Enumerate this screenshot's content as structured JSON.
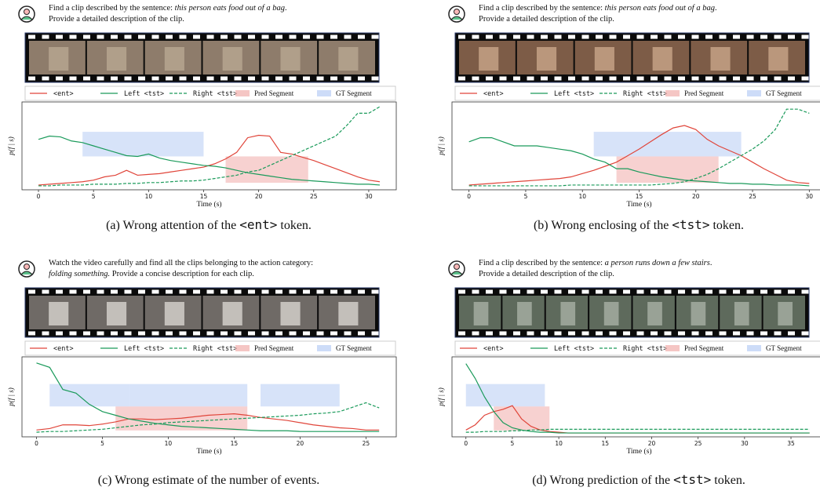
{
  "chart_data": [
    {
      "type": "line",
      "instruction": [
        [
          "Find a clip described by the sentence: ",
          {
            "text": "this person eats food out of a bag",
            "italic": true
          },
          "."
        ],
        [
          "Provide a detailed description of the clip."
        ]
      ],
      "xlabel": "Time (s)",
      "ylabel": "p(f | s)",
      "x": [
        0,
        1,
        2,
        3,
        4,
        5,
        6,
        7,
        8,
        9,
        10,
        11,
        12,
        13,
        14,
        15,
        16,
        17,
        18,
        19,
        20,
        21,
        22,
        23,
        24,
        25,
        26,
        27,
        28,
        29,
        30,
        31
      ],
      "series": [
        {
          "name": "<ent>",
          "color": "#e0453a",
          "linestyle": "solid",
          "values": [
            0.02,
            0.03,
            0.04,
            0.05,
            0.06,
            0.08,
            0.12,
            0.14,
            0.2,
            0.14,
            0.15,
            0.16,
            0.18,
            0.2,
            0.22,
            0.24,
            0.28,
            0.34,
            0.42,
            0.6,
            0.63,
            0.62,
            0.42,
            0.4,
            0.36,
            0.32,
            0.27,
            0.22,
            0.17,
            0.12,
            0.08,
            0.06
          ]
        },
        {
          "name": "Left <tst>",
          "color": "#1a9a5a",
          "linestyle": "solid",
          "values": [
            0.58,
            0.62,
            0.61,
            0.56,
            0.54,
            0.5,
            0.46,
            0.42,
            0.38,
            0.37,
            0.4,
            0.35,
            0.32,
            0.3,
            0.28,
            0.26,
            0.25,
            0.23,
            0.2,
            0.17,
            0.15,
            0.13,
            0.11,
            0.09,
            0.08,
            0.07,
            0.06,
            0.05,
            0.04,
            0.03,
            0.03,
            0.02
          ]
        },
        {
          "name": "Right <tst>",
          "color": "#1a9a5a",
          "linestyle": "dashed",
          "values": [
            0.01,
            0.01,
            0.02,
            0.02,
            0.02,
            0.03,
            0.03,
            0.03,
            0.04,
            0.04,
            0.05,
            0.05,
            0.06,
            0.07,
            0.07,
            0.08,
            0.1,
            0.12,
            0.14,
            0.18,
            0.2,
            0.26,
            0.32,
            0.38,
            0.44,
            0.5,
            0.56,
            0.62,
            0.75,
            0.9,
            0.9,
            0.98
          ]
        }
      ],
      "spans": [
        {
          "name": "Pred Segment",
          "color": "#f2b3b0",
          "intervals": [
            [
              17,
              24.5
            ]
          ]
        },
        {
          "name": "GT Segment",
          "color": "#bcd0f5",
          "intervals": [
            [
              4,
              15
            ]
          ]
        }
      ],
      "xlim": [
        -1.5,
        32.5
      ],
      "xticks": [
        0,
        5,
        10,
        15,
        20,
        25,
        30
      ],
      "ylim": [
        0,
        1
      ],
      "caption": [
        "(a) Wrong attention of the ",
        {
          "text": "<ent>",
          "mono": true
        },
        " token."
      ]
    },
    {
      "type": "line",
      "instruction": [
        [
          "Find a clip described by the sentence: ",
          {
            "text": "this person eats food out of a bag",
            "italic": true
          },
          "."
        ],
        [
          "Provide a detailed description of the clip."
        ]
      ],
      "xlabel": "Time (s)",
      "ylabel": "p(f | s)",
      "x": [
        0,
        1,
        2,
        3,
        4,
        5,
        6,
        7,
        8,
        9,
        10,
        11,
        12,
        13,
        14,
        15,
        16,
        17,
        18,
        19,
        20,
        21,
        22,
        23,
        24,
        25,
        26,
        27,
        28,
        29,
        30
      ],
      "series": [
        {
          "name": "<ent>",
          "color": "#e0453a",
          "linestyle": "solid",
          "values": [
            0.02,
            0.03,
            0.04,
            0.05,
            0.06,
            0.07,
            0.08,
            0.09,
            0.1,
            0.12,
            0.16,
            0.2,
            0.25,
            0.3,
            0.38,
            0.46,
            0.55,
            0.64,
            0.72,
            0.75,
            0.7,
            0.58,
            0.5,
            0.44,
            0.38,
            0.3,
            0.22,
            0.15,
            0.08,
            0.05,
            0.04
          ]
        },
        {
          "name": "Left <tst>",
          "color": "#1a9a5a",
          "linestyle": "solid",
          "values": [
            0.55,
            0.6,
            0.6,
            0.55,
            0.5,
            0.5,
            0.5,
            0.48,
            0.46,
            0.44,
            0.4,
            0.34,
            0.3,
            0.22,
            0.22,
            0.18,
            0.15,
            0.12,
            0.1,
            0.08,
            0.07,
            0.06,
            0.05,
            0.04,
            0.04,
            0.03,
            0.03,
            0.02,
            0.02,
            0.02,
            0.01
          ]
        },
        {
          "name": "Right <tst>",
          "color": "#1a9a5a",
          "linestyle": "dashed",
          "values": [
            0.01,
            0.01,
            0.01,
            0.01,
            0.01,
            0.01,
            0.01,
            0.01,
            0.01,
            0.02,
            0.02,
            0.02,
            0.02,
            0.02,
            0.02,
            0.02,
            0.02,
            0.03,
            0.04,
            0.06,
            0.1,
            0.15,
            0.22,
            0.3,
            0.38,
            0.46,
            0.56,
            0.7,
            0.95,
            0.95,
            0.9
          ]
        }
      ],
      "spans": [
        {
          "name": "Pred Segment",
          "color": "#f2b3b0",
          "intervals": [
            [
              13,
              22
            ]
          ]
        },
        {
          "name": "GT Segment",
          "color": "#bcd0f5",
          "intervals": [
            [
              11,
              24
            ]
          ]
        }
      ],
      "xlim": [
        -1.5,
        31.5
      ],
      "xticks": [
        0,
        5,
        10,
        15,
        20,
        25,
        30
      ],
      "ylim": [
        0,
        1
      ],
      "caption": [
        "(b) Wrong enclosing of the ",
        {
          "text": "<tst>",
          "mono": true
        },
        " token."
      ]
    },
    {
      "type": "line",
      "instruction": [
        [
          "Watch the video carefully and find all the clips belonging to the action category:"
        ],
        [
          {
            "text": "folding something.",
            "italic": true
          },
          " Provide a concise description for each clip."
        ]
      ],
      "xlabel": "Time (s)",
      "ylabel": "p(f | s)",
      "x": [
        0,
        1,
        2,
        3,
        4,
        5,
        6,
        7,
        8,
        9,
        10,
        11,
        12,
        13,
        14,
        15,
        16,
        17,
        18,
        19,
        20,
        21,
        22,
        23,
        24,
        25,
        26
      ],
      "series": [
        {
          "name": "<ent>",
          "color": "#e0453a",
          "linestyle": "solid",
          "values": [
            0.05,
            0.07,
            0.12,
            0.12,
            0.11,
            0.13,
            0.16,
            0.2,
            0.2,
            0.19,
            0.2,
            0.21,
            0.23,
            0.25,
            0.26,
            0.27,
            0.25,
            0.22,
            0.2,
            0.18,
            0.15,
            0.12,
            0.1,
            0.08,
            0.07,
            0.05,
            0.05
          ]
        },
        {
          "name": "Left <tst>",
          "color": "#1a9a5a",
          "linestyle": "solid",
          "values": [
            0.96,
            0.9,
            0.6,
            0.55,
            0.4,
            0.3,
            0.25,
            0.2,
            0.17,
            0.14,
            0.12,
            0.1,
            0.09,
            0.08,
            0.07,
            0.06,
            0.05,
            0.04,
            0.04,
            0.04,
            0.03,
            0.03,
            0.03,
            0.03,
            0.03,
            0.03,
            0.03
          ]
        },
        {
          "name": "Right <tst>",
          "color": "#1a9a5a",
          "linestyle": "dashed",
          "values": [
            0.02,
            0.03,
            0.03,
            0.04,
            0.05,
            0.06,
            0.08,
            0.1,
            0.12,
            0.13,
            0.15,
            0.16,
            0.17,
            0.18,
            0.19,
            0.2,
            0.21,
            0.22,
            0.23,
            0.24,
            0.25,
            0.27,
            0.28,
            0.3,
            0.36,
            0.42,
            0.35
          ]
        }
      ],
      "spans": [
        {
          "name": "Pred Segment",
          "color": "#f2b3b0",
          "intervals": [
            [
              6,
              16
            ]
          ]
        },
        {
          "name": "GT Segment",
          "color": "#bcd0f5",
          "intervals": [
            [
              1,
              7
            ],
            [
              7,
              16
            ],
            [
              17,
              23
            ]
          ]
        }
      ],
      "xlim": [
        -1.1,
        27.3
      ],
      "xticks": [
        0,
        5,
        10,
        15,
        20,
        25
      ],
      "ylim": [
        0,
        1
      ],
      "caption": [
        "(c) Wrong estimate of the number of events."
      ]
    },
    {
      "type": "line",
      "instruction": [
        [
          "Find a clip described by the sentence: ",
          {
            "text": "a person runs down a few stairs",
            "italic": true
          },
          "."
        ],
        [
          "Provide a detailed description of the clip."
        ]
      ],
      "xlabel": "Time (s)",
      "ylabel": "p(f | s)",
      "x": [
        0,
        1,
        2,
        3,
        4,
        5,
        6,
        7,
        8,
        9,
        10,
        11,
        12,
        13,
        14,
        15,
        16,
        17,
        18,
        19,
        20,
        21,
        22,
        23,
        24,
        25,
        26,
        27,
        28,
        29,
        30,
        31,
        32,
        33,
        34,
        35,
        36,
        37
      ],
      "series": [
        {
          "name": "<ent>",
          "color": "#e0453a",
          "linestyle": "solid",
          "values": [
            0.05,
            0.12,
            0.25,
            0.3,
            0.33,
            0.38,
            0.2,
            0.1,
            0.05,
            0.03,
            0.02,
            0.01,
            0.01,
            0.01,
            0.01,
            0.01,
            0.01,
            0.01,
            0.01,
            0.01,
            0.01,
            0.01,
            0.01,
            0.01,
            0.01,
            0.01,
            0.01,
            0.01,
            0.01,
            0.01,
            0.01,
            0.01,
            0.01,
            0.01,
            0.01,
            0.01,
            0.01,
            0.01
          ]
        },
        {
          "name": "Left <tst>",
          "color": "#1a9a5a",
          "linestyle": "solid",
          "values": [
            0.95,
            0.75,
            0.5,
            0.3,
            0.15,
            0.08,
            0.05,
            0.03,
            0.02,
            0.02,
            0.01,
            0.01,
            0.01,
            0.01,
            0.01,
            0.01,
            0.01,
            0.01,
            0.01,
            0.01,
            0.01,
            0.01,
            0.01,
            0.01,
            0.01,
            0.01,
            0.01,
            0.01,
            0.01,
            0.01,
            0.01,
            0.01,
            0.01,
            0.01,
            0.01,
            0.01,
            0.01,
            0.01
          ]
        },
        {
          "name": "Right <tst>",
          "color": "#1a9a5a",
          "linestyle": "dashed",
          "values": [
            0.02,
            0.02,
            0.03,
            0.03,
            0.03,
            0.04,
            0.04,
            0.05,
            0.05,
            0.06,
            0.06,
            0.06,
            0.06,
            0.06,
            0.06,
            0.06,
            0.06,
            0.06,
            0.06,
            0.06,
            0.06,
            0.06,
            0.06,
            0.06,
            0.06,
            0.06,
            0.06,
            0.06,
            0.06,
            0.06,
            0.06,
            0.06,
            0.06,
            0.06,
            0.06,
            0.06,
            0.06,
            0.06
          ]
        }
      ],
      "spans": [
        {
          "name": "Pred Segment",
          "color": "#f2b3b0",
          "intervals": [
            [
              3,
              9
            ]
          ]
        },
        {
          "name": "GT Segment",
          "color": "#bcd0f5",
          "intervals": [
            [
              0,
              8.5
            ]
          ]
        }
      ],
      "xlim": [
        -1.5,
        38.8
      ],
      "xticks": [
        0,
        5,
        10,
        15,
        20,
        25,
        30,
        35
      ],
      "ylim": [
        0,
        1
      ],
      "caption": [
        "(d) Wrong prediction of the ",
        {
          "text": "<tst>",
          "mono": true
        },
        " token."
      ]
    }
  ]
}
